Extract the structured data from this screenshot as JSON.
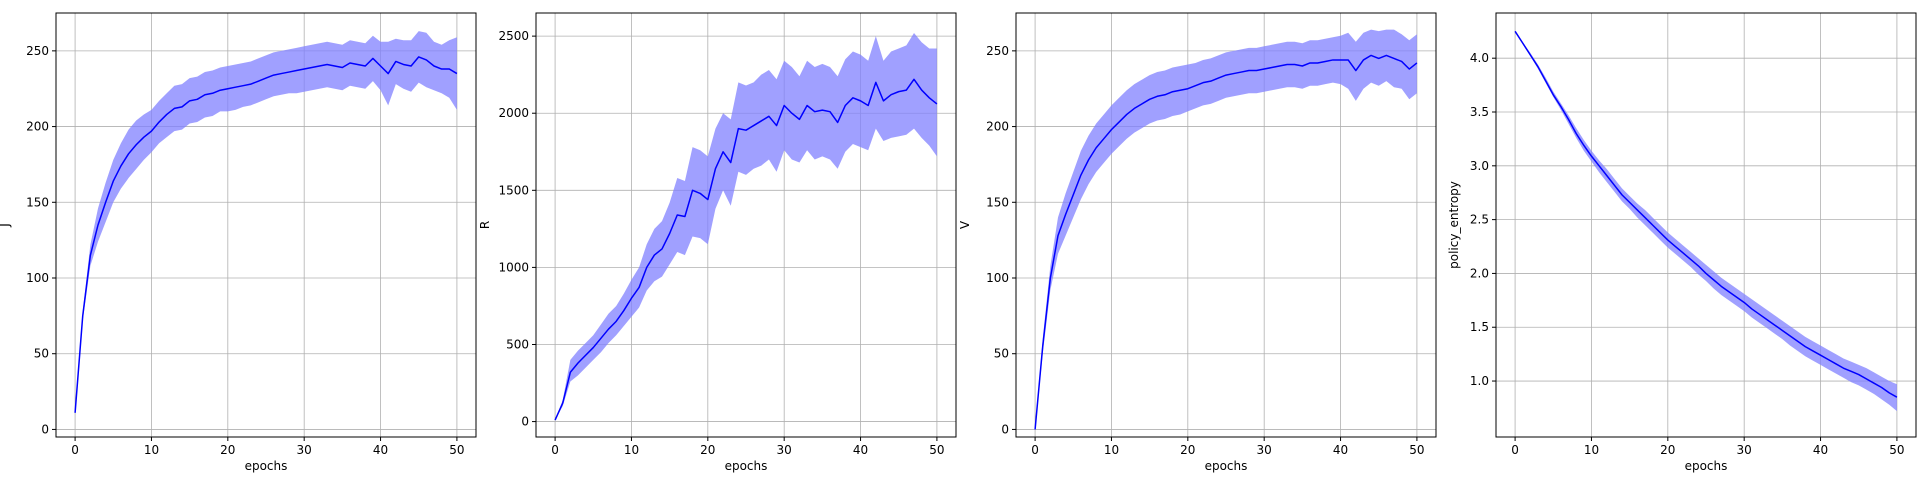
{
  "chart_data": [
    {
      "type": "line",
      "xlabel": "epochs",
      "ylabel": "J",
      "xlim": [
        -2.5,
        52.5
      ],
      "ylim": [
        -5,
        275
      ],
      "xticks": [
        0,
        10,
        20,
        30,
        40,
        50
      ],
      "yticks": [
        0,
        50,
        100,
        150,
        200,
        250
      ],
      "grid": true,
      "x": [
        0,
        1,
        2,
        3,
        4,
        5,
        6,
        7,
        8,
        9,
        10,
        11,
        12,
        13,
        14,
        15,
        16,
        17,
        18,
        19,
        20,
        21,
        22,
        23,
        24,
        25,
        26,
        27,
        28,
        29,
        30,
        31,
        32,
        33,
        34,
        35,
        36,
        37,
        38,
        39,
        40,
        41,
        42,
        43,
        44,
        45,
        46,
        47,
        48,
        49,
        50
      ],
      "series": [
        {
          "color": "#0000ff",
          "band_color": "#8080ff",
          "mean": [
            11,
            75,
            115,
            135,
            150,
            164,
            174,
            182,
            188,
            193,
            197,
            203,
            208,
            212,
            213,
            217,
            218,
            221,
            222,
            224,
            225,
            226,
            227,
            228,
            230,
            232,
            234,
            235,
            236,
            237,
            238,
            239,
            240,
            241,
            240,
            239,
            242,
            241,
            240,
            245,
            240,
            235,
            243,
            241,
            240,
            246,
            244,
            240,
            238,
            238,
            235
          ],
          "lower": [
            11,
            72,
            108,
            124,
            137,
            150,
            159,
            166,
            172,
            178,
            183,
            189,
            193,
            197,
            198,
            202,
            203,
            206,
            207,
            210,
            210,
            211,
            213,
            214,
            216,
            218,
            220,
            221,
            222,
            222,
            223,
            224,
            225,
            226,
            225,
            224,
            227,
            226,
            225,
            230,
            224,
            214,
            228,
            225,
            223,
            229,
            226,
            224,
            222,
            219,
            211
          ],
          "upper": [
            11,
            78,
            122,
            146,
            163,
            178,
            189,
            198,
            204,
            208,
            211,
            217,
            222,
            227,
            228,
            232,
            233,
            236,
            237,
            239,
            240,
            241,
            242,
            243,
            245,
            247,
            249,
            250,
            251,
            252,
            253,
            254,
            255,
            256,
            255,
            254,
            257,
            256,
            255,
            260,
            256,
            256,
            258,
            257,
            257,
            263,
            262,
            256,
            254,
            257,
            259
          ]
        }
      ]
    },
    {
      "type": "line",
      "xlabel": "epochs",
      "ylabel": "R",
      "xlim": [
        -2.5,
        52.5
      ],
      "ylim": [
        -100,
        2650
      ],
      "xticks": [
        0,
        10,
        20,
        30,
        40,
        50
      ],
      "yticks": [
        0,
        500,
        1000,
        1500,
        2000,
        2500
      ],
      "grid": true,
      "x": [
        0,
        1,
        2,
        3,
        4,
        5,
        6,
        7,
        8,
        9,
        10,
        11,
        12,
        13,
        14,
        15,
        16,
        17,
        18,
        19,
        20,
        21,
        22,
        23,
        24,
        25,
        26,
        27,
        28,
        29,
        30,
        31,
        32,
        33,
        34,
        35,
        36,
        37,
        38,
        39,
        40,
        41,
        42,
        43,
        44,
        45,
        46,
        47,
        48,
        49,
        50
      ],
      "series": [
        {
          "color": "#0000ff",
          "band_color": "#8080ff",
          "mean": [
            10,
            120,
            320,
            380,
            430,
            480,
            540,
            600,
            650,
            720,
            800,
            870,
            1000,
            1080,
            1120,
            1220,
            1340,
            1330,
            1500,
            1480,
            1440,
            1640,
            1750,
            1680,
            1900,
            1890,
            1920,
            1950,
            1980,
            1920,
            2050,
            2000,
            1960,
            2050,
            2010,
            2020,
            2010,
            1940,
            2050,
            2100,
            2080,
            2050,
            2200,
            2080,
            2120,
            2140,
            2150,
            2220,
            2150,
            2100,
            2060
          ],
          "lower": [
            10,
            100,
            260,
            300,
            350,
            400,
            450,
            510,
            560,
            620,
            680,
            740,
            850,
            910,
            940,
            1020,
            1100,
            1080,
            1200,
            1190,
            1150,
            1380,
            1500,
            1400,
            1620,
            1600,
            1640,
            1660,
            1700,
            1620,
            1760,
            1700,
            1680,
            1760,
            1700,
            1720,
            1700,
            1640,
            1750,
            1800,
            1780,
            1760,
            1900,
            1820,
            1840,
            1850,
            1860,
            1900,
            1840,
            1790,
            1720
          ],
          "upper": [
            10,
            140,
            400,
            460,
            510,
            560,
            630,
            700,
            750,
            830,
            920,
            1000,
            1150,
            1250,
            1300,
            1420,
            1580,
            1560,
            1780,
            1760,
            1720,
            1900,
            2000,
            1960,
            2200,
            2180,
            2200,
            2250,
            2280,
            2220,
            2340,
            2300,
            2240,
            2340,
            2300,
            2320,
            2300,
            2240,
            2350,
            2400,
            2380,
            2340,
            2500,
            2340,
            2400,
            2420,
            2440,
            2520,
            2460,
            2420,
            2420
          ]
        }
      ]
    },
    {
      "type": "line",
      "xlabel": "epochs",
      "ylabel": "V",
      "xlim": [
        -2.5,
        52.5
      ],
      "ylim": [
        -5,
        275
      ],
      "xticks": [
        0,
        10,
        20,
        30,
        40,
        50
      ],
      "yticks": [
        0,
        50,
        100,
        150,
        200,
        250
      ],
      "grid": true,
      "x": [
        0,
        1,
        2,
        3,
        4,
        5,
        6,
        7,
        8,
        9,
        10,
        11,
        12,
        13,
        14,
        15,
        16,
        17,
        18,
        19,
        20,
        21,
        22,
        23,
        24,
        25,
        26,
        27,
        28,
        29,
        30,
        31,
        32,
        33,
        34,
        35,
        36,
        37,
        38,
        39,
        40,
        41,
        42,
        43,
        44,
        45,
        46,
        47,
        48,
        49,
        50
      ],
      "series": [
        {
          "color": "#0000ff",
          "band_color": "#8080ff",
          "mean": [
            0,
            55,
            100,
            128,
            142,
            155,
            168,
            178,
            186,
            192,
            198,
            203,
            208,
            212,
            215,
            218,
            220,
            221,
            223,
            224,
            225,
            227,
            229,
            230,
            232,
            234,
            235,
            236,
            237,
            237,
            238,
            239,
            240,
            241,
            241,
            240,
            242,
            242,
            243,
            244,
            244,
            244,
            237,
            244,
            247,
            245,
            247,
            245,
            243,
            238,
            242
          ],
          "lower": [
            0,
            50,
            92,
            116,
            128,
            140,
            152,
            162,
            170,
            176,
            182,
            187,
            192,
            196,
            199,
            202,
            204,
            205,
            207,
            208,
            210,
            212,
            214,
            215,
            217,
            219,
            220,
            221,
            222,
            222,
            223,
            224,
            225,
            226,
            226,
            225,
            227,
            227,
            228,
            229,
            228,
            225,
            217,
            225,
            229,
            227,
            230,
            226,
            225,
            218,
            222
          ],
          "upper": [
            0,
            60,
            108,
            140,
            156,
            170,
            184,
            194,
            202,
            208,
            214,
            219,
            224,
            228,
            231,
            234,
            236,
            237,
            239,
            240,
            241,
            242,
            244,
            245,
            247,
            249,
            250,
            251,
            252,
            252,
            253,
            254,
            255,
            256,
            256,
            255,
            257,
            257,
            258,
            259,
            260,
            262,
            256,
            262,
            264,
            263,
            264,
            264,
            261,
            257,
            261
          ]
        }
      ]
    },
    {
      "type": "line",
      "xlabel": "epochs",
      "ylabel": "policy_entropy",
      "xlim": [
        -2.5,
        52.5
      ],
      "ylim": [
        0.48,
        4.42
      ],
      "xticks": [
        0,
        10,
        20,
        30,
        40,
        50
      ],
      "yticks": [
        1.0,
        1.5,
        2.0,
        2.5,
        3.0,
        3.5,
        4.0
      ],
      "yticklabels": [
        "1.0",
        "1.5",
        "2.0",
        "2.5",
        "3.0",
        "3.5",
        "4.0"
      ],
      "grid": true,
      "x": [
        0,
        1,
        2,
        3,
        4,
        5,
        6,
        7,
        8,
        9,
        10,
        11,
        12,
        13,
        14,
        15,
        16,
        17,
        18,
        19,
        20,
        21,
        22,
        23,
        24,
        25,
        26,
        27,
        28,
        29,
        30,
        31,
        32,
        33,
        34,
        35,
        36,
        37,
        38,
        39,
        40,
        41,
        42,
        43,
        44,
        45,
        46,
        47,
        48,
        49,
        50
      ],
      "series": [
        {
          "color": "#0000ff",
          "band_color": "#8080ff",
          "mean": [
            4.25,
            4.14,
            4.03,
            3.92,
            3.79,
            3.66,
            3.55,
            3.43,
            3.3,
            3.19,
            3.09,
            3.0,
            2.91,
            2.82,
            2.73,
            2.66,
            2.59,
            2.52,
            2.45,
            2.38,
            2.31,
            2.25,
            2.19,
            2.13,
            2.07,
            2.0,
            1.94,
            1.88,
            1.83,
            1.78,
            1.73,
            1.67,
            1.62,
            1.57,
            1.52,
            1.47,
            1.42,
            1.37,
            1.32,
            1.28,
            1.24,
            1.2,
            1.16,
            1.12,
            1.09,
            1.06,
            1.02,
            0.98,
            0.94,
            0.89,
            0.85
          ],
          "lower": [
            4.25,
            4.13,
            4.02,
            3.9,
            3.77,
            3.64,
            3.52,
            3.39,
            3.26,
            3.14,
            3.04,
            2.94,
            2.85,
            2.76,
            2.67,
            2.6,
            2.52,
            2.45,
            2.38,
            2.31,
            2.24,
            2.18,
            2.12,
            2.06,
            1.99,
            1.93,
            1.86,
            1.8,
            1.75,
            1.7,
            1.65,
            1.59,
            1.54,
            1.49,
            1.44,
            1.39,
            1.33,
            1.28,
            1.23,
            1.19,
            1.15,
            1.11,
            1.07,
            1.03,
            0.99,
            0.96,
            0.92,
            0.88,
            0.83,
            0.78,
            0.72
          ],
          "upper": [
            4.25,
            4.15,
            4.05,
            3.94,
            3.82,
            3.69,
            3.58,
            3.47,
            3.35,
            3.24,
            3.14,
            3.05,
            2.97,
            2.88,
            2.79,
            2.72,
            2.65,
            2.59,
            2.52,
            2.45,
            2.38,
            2.32,
            2.26,
            2.2,
            2.14,
            2.08,
            2.02,
            1.96,
            1.91,
            1.86,
            1.81,
            1.76,
            1.71,
            1.66,
            1.61,
            1.56,
            1.51,
            1.46,
            1.41,
            1.37,
            1.33,
            1.29,
            1.25,
            1.21,
            1.18,
            1.15,
            1.12,
            1.08,
            1.04,
            1.0,
            0.97
          ]
        }
      ]
    }
  ]
}
